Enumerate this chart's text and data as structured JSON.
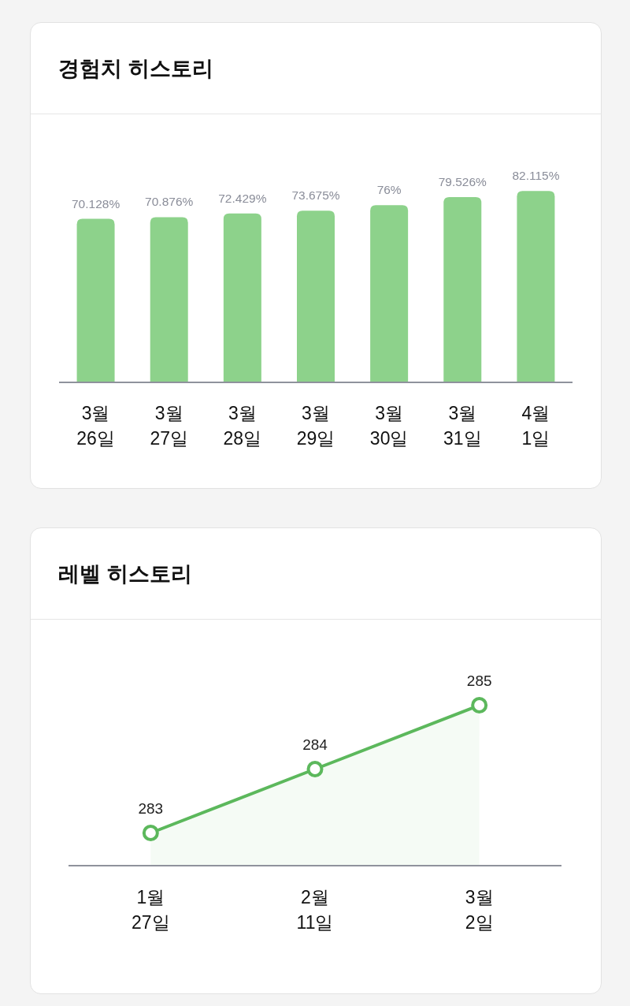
{
  "chart_data": [
    {
      "type": "bar",
      "title": "경험치 히스토리",
      "categories": [
        "3월 26일",
        "3월 27일",
        "3월 28일",
        "3월 29일",
        "3월 30일",
        "3월 31일",
        "4월 1일"
      ],
      "values": [
        70.128,
        70.876,
        72.429,
        73.675,
        76,
        79.526,
        82.115
      ],
      "value_labels": [
        "70.128%",
        "70.876%",
        "72.429%",
        "73.675%",
        "76%",
        "79.526%",
        "82.115%"
      ],
      "color": "#8dd28b"
    },
    {
      "type": "area",
      "title": "레벨 히스토리",
      "categories": [
        "1월 27일",
        "2월 11일",
        "3월 2일"
      ],
      "series": [
        {
          "color": "#5cb85c",
          "values": [
            283,
            284,
            285
          ]
        }
      ],
      "data_labels": true,
      "marker": "circle"
    }
  ]
}
